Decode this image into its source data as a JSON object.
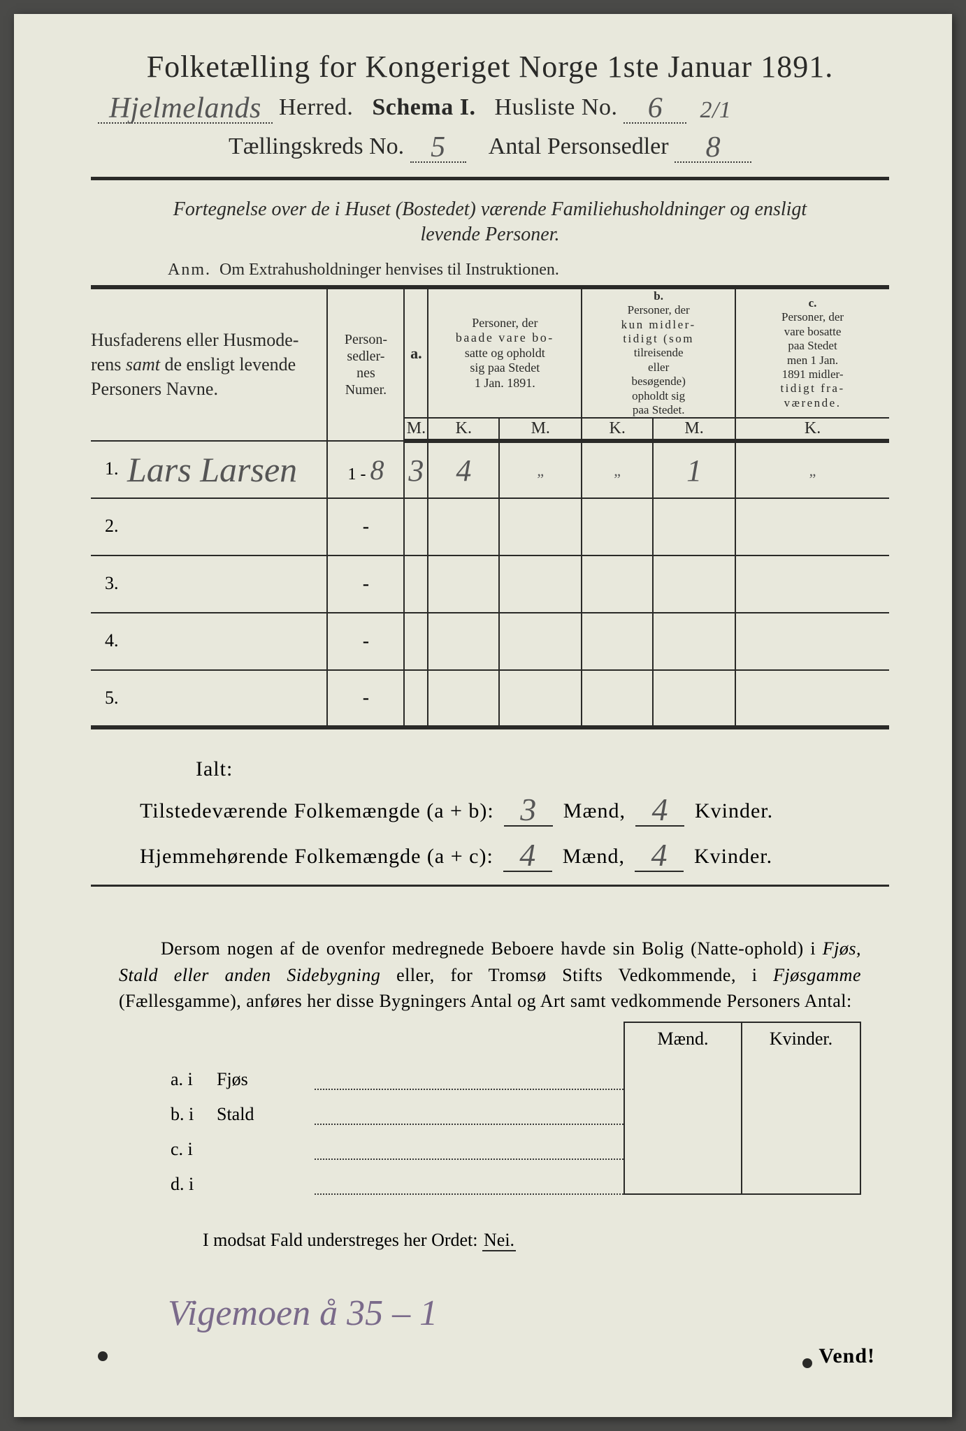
{
  "colors": {
    "paper": "#e8e8dc",
    "ink": "#2a2a28",
    "handwriting": "#555",
    "handwriting_faded": "#7a6a8a",
    "background": "#4a4a48"
  },
  "title": "Folketælling for Kongeriget Norge 1ste Januar 1891.",
  "header": {
    "herred_value": "Hjelmelands",
    "herred_label": "Herred.",
    "schema_label": "Schema I.",
    "husliste_label": "Husliste No.",
    "husliste_no": "6",
    "husliste_suffix": "2/1",
    "kreds_label": "Tællingskreds No.",
    "kreds_no": "5",
    "antal_label": "Antal Personsedler",
    "antal_value": "8"
  },
  "fortegnelse_line1": "Fortegnelse over de i Huset (Bostedet) værende Familiehusholdninger og ensligt",
  "fortegnelse_line2": "levende Personer.",
  "anm_label": "Anm.",
  "anm_text": "Om Extrahusholdninger henvises til Instruktionen.",
  "table": {
    "col_names": {
      "label_line1": "Husfaderens eller Husmode-",
      "label_line2": "rens samt de ensligt levende",
      "label_line3": "Personers Navne."
    },
    "col_person": {
      "l1": "Person-",
      "l2": "sedler-",
      "l3": "nes",
      "l4": "Numer."
    },
    "group_a": {
      "letter": "a.",
      "l1": "Personer, der",
      "l2": "baade vare bo-",
      "l3": "satte og opholdt",
      "l4": "sig paa Stedet",
      "l5": "1 Jan. 1891."
    },
    "group_b": {
      "letter": "b.",
      "l1": "Personer, der",
      "l2": "kun midler-",
      "l3": "tidigt (som",
      "l4": "tilreisende",
      "l5": "eller",
      "l6": "besøgende)",
      "l7": "opholdt sig",
      "l8": "paa Stedet."
    },
    "group_c": {
      "letter": "c.",
      "l1": "Personer, der",
      "l2": "vare bosatte",
      "l3": "paa Stedet",
      "l4": "men 1 Jan.",
      "l5": "1891 midler-",
      "l6": "tidigt fra-",
      "l7": "værende."
    },
    "mk_m": "M.",
    "mk_k": "K.",
    "rows": [
      {
        "n": "1.",
        "name": "Lars Larsen",
        "person": "1 - 8",
        "a_m": "3",
        "a_k": "4",
        "b_m": "„",
        "b_k": "„",
        "c_m": "1",
        "c_k": "„"
      },
      {
        "n": "2.",
        "name": "",
        "person": "-",
        "a_m": "",
        "a_k": "",
        "b_m": "",
        "b_k": "",
        "c_m": "",
        "c_k": ""
      },
      {
        "n": "3.",
        "name": "",
        "person": "-",
        "a_m": "",
        "a_k": "",
        "b_m": "",
        "b_k": "",
        "c_m": "",
        "c_k": ""
      },
      {
        "n": "4.",
        "name": "",
        "person": "-",
        "a_m": "",
        "a_k": "",
        "b_m": "",
        "b_k": "",
        "c_m": "",
        "c_k": ""
      },
      {
        "n": "5.",
        "name": "",
        "person": "-",
        "a_m": "",
        "a_k": "",
        "b_m": "",
        "b_k": "",
        "c_m": "",
        "c_k": ""
      }
    ]
  },
  "ialt": "Ialt:",
  "sum1": {
    "label": "Tilstedeværende Folkemængde (a + b):",
    "m": "3",
    "maend": "Mænd,",
    "k": "4",
    "kvinder": "Kvinder."
  },
  "sum2": {
    "label": "Hjemmehørende Folkemængde (a + c):",
    "m": "4",
    "maend": "Mænd,",
    "k": "4",
    "kvinder": "Kvinder."
  },
  "dersom": "Dersom nogen af de ovenfor medregnede Beboere havde sin Bolig (Natte-ophold) i <em>Fjøs, Stald eller anden Sidebygning</em> eller, for Tromsø Stifts Vedkommende, i <em>Fjøsgamme</em> (Fællesgamme), anføres her disse Bygningers Antal og Art samt vedkommende Personers Antal:",
  "subtable": {
    "head_m": "Mænd.",
    "head_k": "Kvinder.",
    "rows": [
      {
        "lab": "a.  i",
        "place": "Fjøs"
      },
      {
        "lab": "b.  i",
        "place": "Stald"
      },
      {
        "lab": "c.  i",
        "place": ""
      },
      {
        "lab": "d.  i",
        "place": ""
      }
    ]
  },
  "modsat_text": "I modsat Fald understreges her Ordet:",
  "modsat_nei": "Nei.",
  "bottom_handwriting": "Vigemoen  å 35 – 1",
  "vend": "Vend!"
}
